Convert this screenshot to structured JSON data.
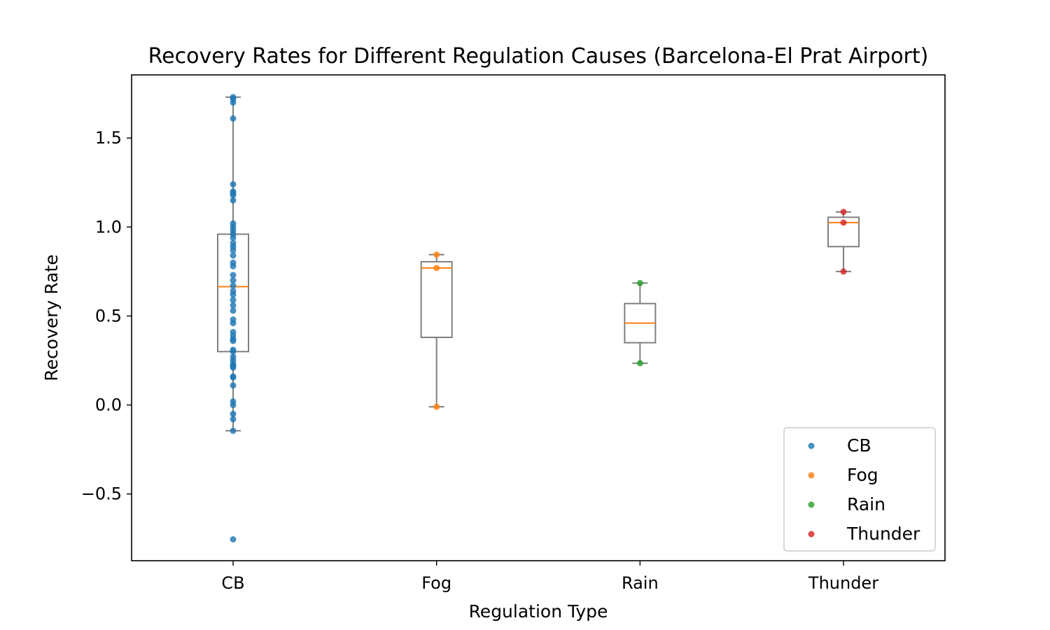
{
  "chart_data": {
    "type": "box",
    "title": "Recovery Rates for Different Regulation Causes (Barcelona-El Prat Airport)",
    "xlabel": "Regulation Type",
    "ylabel": "Recovery Rate",
    "ylim": [
      -0.875,
      1.855
    ],
    "y_ticks": [
      -0.5,
      0.0,
      0.5,
      1.0,
      1.5
    ],
    "y_tick_labels": [
      "−0.5",
      "0.0",
      "0.5",
      "1.0",
      "1.5"
    ],
    "categories": [
      "CB",
      "Fog",
      "Rain",
      "Thunder"
    ],
    "grid": false,
    "legend_position": "lower right",
    "colors": {
      "box_edge": "#808080",
      "median": "#ff7f0e",
      "axes": "#000000"
    },
    "series": [
      {
        "name": "CB",
        "color": "#1f77b4",
        "box": {
          "whisker_low": -0.145,
          "q1": 0.3,
          "median": 0.665,
          "q3": 0.96,
          "whisker_high": 1.73
        },
        "points": [
          1.73,
          1.72,
          1.7,
          1.61,
          1.24,
          1.2,
          1.19,
          1.18,
          1.15,
          1.02,
          1.0,
          0.98,
          0.96,
          0.94,
          0.91,
          0.89,
          0.87,
          0.84,
          0.8,
          0.78,
          0.73,
          0.7,
          0.67,
          0.64,
          0.62,
          0.59,
          0.56,
          0.53,
          0.48,
          0.46,
          0.41,
          0.39,
          0.37,
          0.36,
          0.31,
          0.3,
          0.27,
          0.25,
          0.23,
          0.22,
          0.21,
          0.16,
          0.155,
          0.11,
          0.02,
          0.0,
          -0.05,
          -0.08,
          -0.145,
          -0.755
        ]
      },
      {
        "name": "Fog",
        "color": "#ff7f0e",
        "box": {
          "whisker_low": -0.01,
          "q1": 0.38,
          "median": 0.77,
          "q3": 0.805,
          "whisker_high": 0.845
        },
        "points": [
          0.845,
          0.77,
          -0.01
        ]
      },
      {
        "name": "Rain",
        "color": "#2ca02c",
        "box": {
          "whisker_low": 0.235,
          "q1": 0.35,
          "median": 0.46,
          "q3": 0.57,
          "whisker_high": 0.685
        },
        "points": [
          0.685,
          0.235
        ]
      },
      {
        "name": "Thunder",
        "color": "#d62728",
        "box": {
          "whisker_low": 0.75,
          "q1": 0.89,
          "median": 1.025,
          "q3": 1.055,
          "whisker_high": 1.085
        },
        "points": [
          1.085,
          1.025,
          0.75
        ]
      }
    ]
  }
}
